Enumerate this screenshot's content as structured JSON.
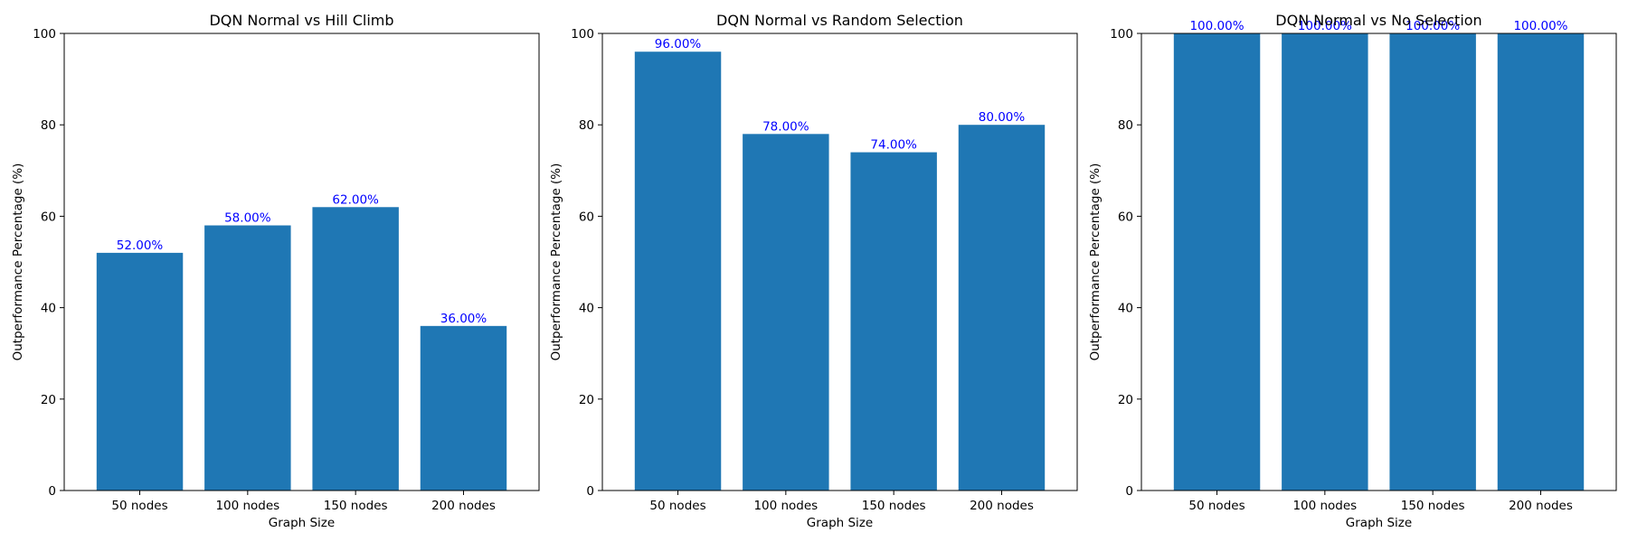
{
  "colors": {
    "bar": "#1f77b4",
    "data_label": "#0000ff",
    "axis": "#000000",
    "background": "#ffffff"
  },
  "chart_data": [
    {
      "type": "bar",
      "title": "DQN Normal vs Hill Climb",
      "xlabel": "Graph Size",
      "ylabel": "Outperformance Percentage (%)",
      "categories": [
        "50 nodes",
        "100 nodes",
        "150 nodes",
        "200 nodes"
      ],
      "values": [
        52,
        58,
        62,
        36
      ],
      "data_labels": [
        "52.00%",
        "58.00%",
        "62.00%",
        "36.00%"
      ],
      "ylim": [
        0,
        100
      ],
      "yticks": [
        0,
        20,
        40,
        60,
        80,
        100
      ],
      "grid": false
    },
    {
      "type": "bar",
      "title": "DQN Normal vs Random Selection",
      "xlabel": "Graph Size",
      "ylabel": "Outperformance Percentage (%)",
      "categories": [
        "50 nodes",
        "100 nodes",
        "150 nodes",
        "200 nodes"
      ],
      "values": [
        96,
        78,
        74,
        80
      ],
      "data_labels": [
        "96.00%",
        "78.00%",
        "74.00%",
        "80.00%"
      ],
      "ylim": [
        0,
        100
      ],
      "yticks": [
        0,
        20,
        40,
        60,
        80,
        100
      ],
      "grid": false
    },
    {
      "type": "bar",
      "title": "DQN Normal vs No Selection",
      "xlabel": "Graph Size",
      "ylabel": "Outperformance Percentage (%)",
      "categories": [
        "50 nodes",
        "100 nodes",
        "150 nodes",
        "200 nodes"
      ],
      "values": [
        100,
        100,
        100,
        100
      ],
      "data_labels": [
        "100.00%",
        "100.00%",
        "100.00%",
        "100.00%"
      ],
      "ylim": [
        0,
        100
      ],
      "yticks": [
        0,
        20,
        40,
        60,
        80,
        100
      ],
      "grid": false
    }
  ]
}
